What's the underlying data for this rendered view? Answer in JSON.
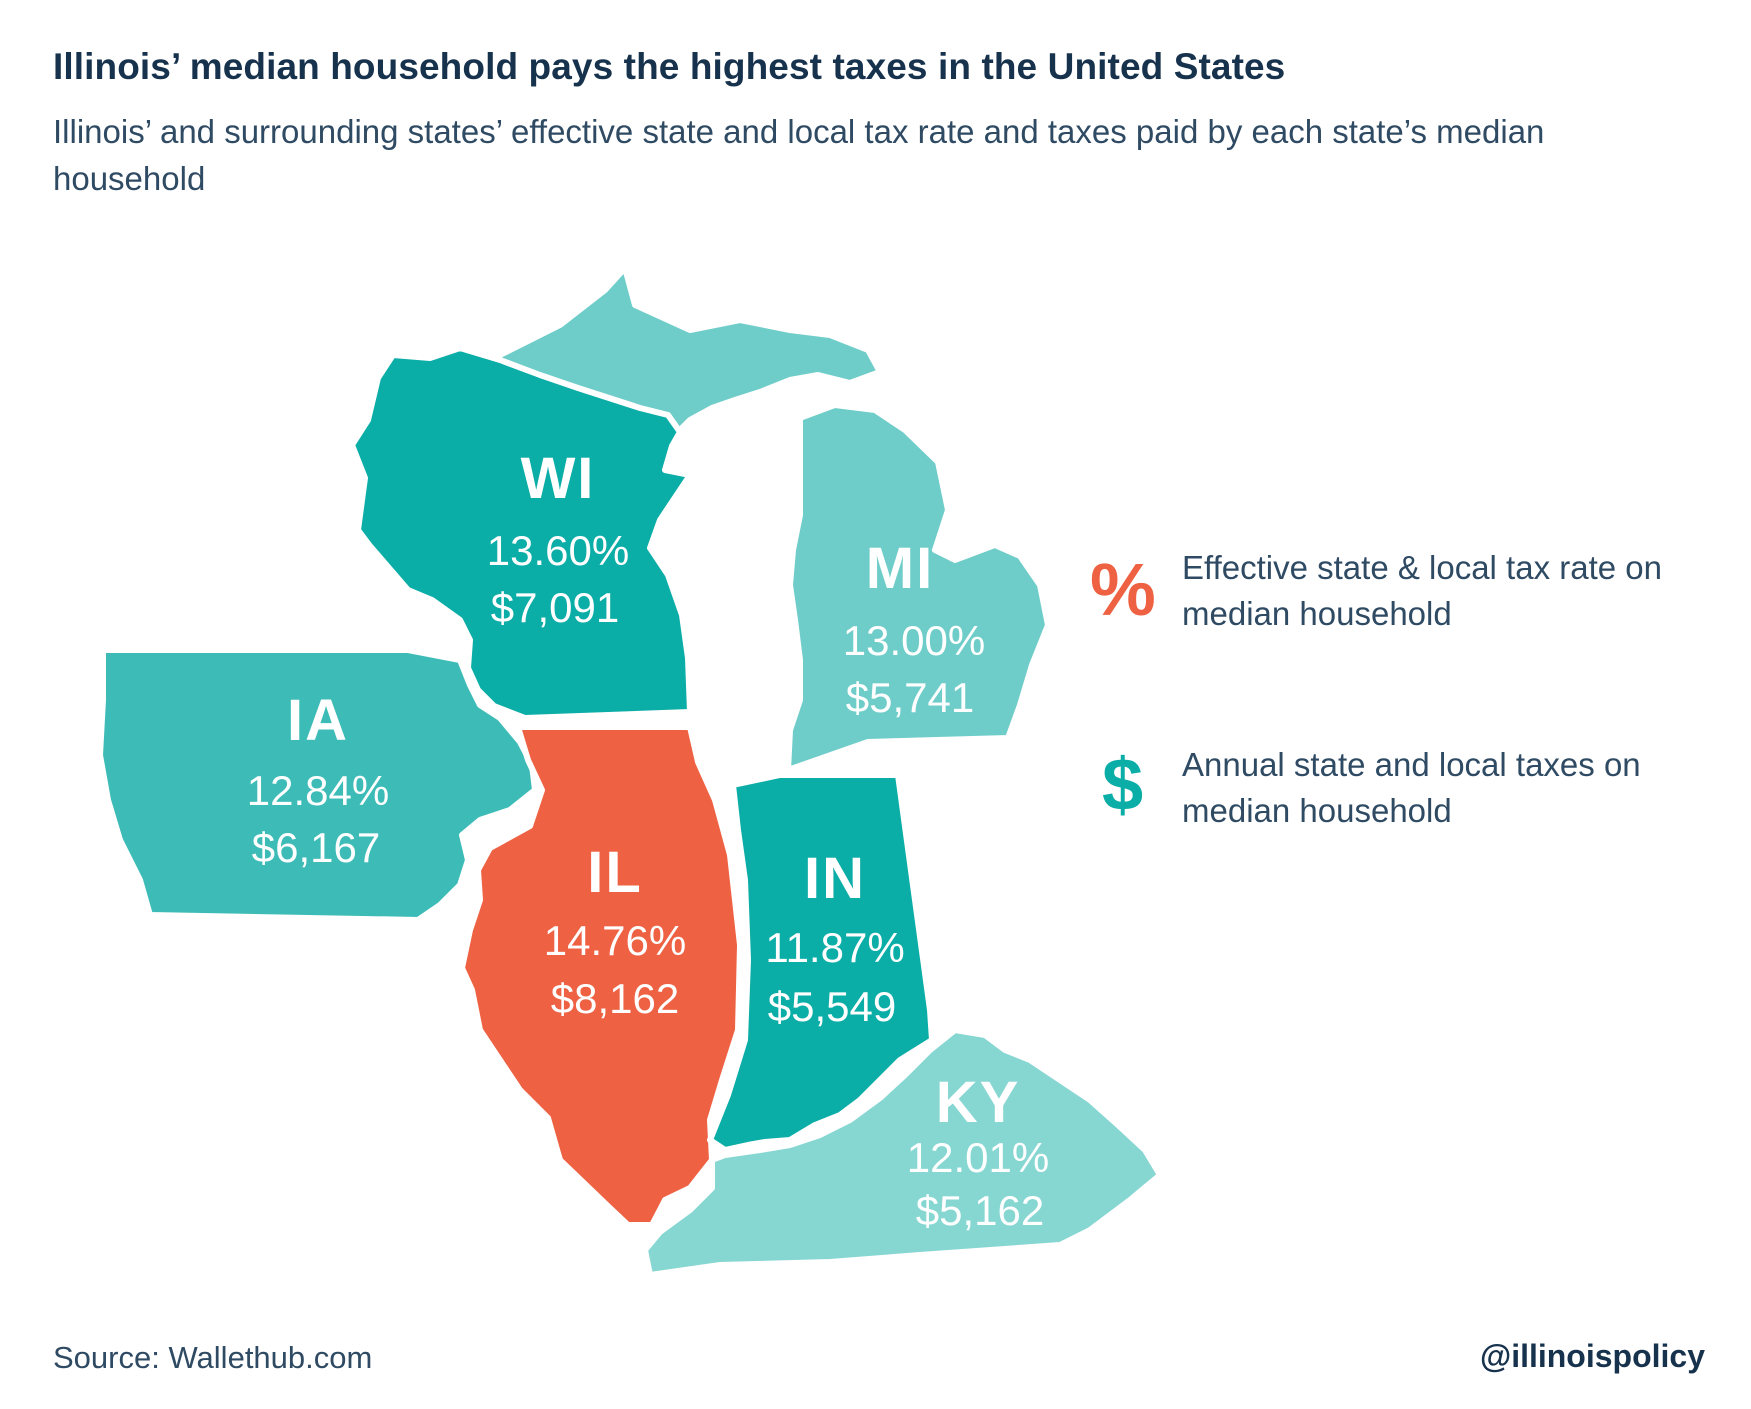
{
  "title": "Illinois’ median household pays the highest taxes in the United States",
  "subtitle": "Illinois’ and surrounding states’ effective state and local tax rate and taxes paid by each state’s median household",
  "colors": {
    "highlight": "#ee6142",
    "dark_teal": "#0bada7",
    "mid_teal": "#3dbcb7",
    "light_teal": "#6fcdc9",
    "pale_teal": "#86d6d2"
  },
  "states": [
    {
      "code": "WI",
      "rate": "13.60%",
      "taxes": "$7,091",
      "color": "#0bada7"
    },
    {
      "code": "MI",
      "rate": "13.00%",
      "taxes": "$5,741",
      "color": "#6fcdc9"
    },
    {
      "code": "IA",
      "rate": "12.84%",
      "taxes": "$6,167",
      "color": "#3dbcb7"
    },
    {
      "code": "IL",
      "rate": "14.76%",
      "taxes": "$8,162",
      "color": "#ee6142"
    },
    {
      "code": "IN",
      "rate": "11.87%",
      "taxes": "$5,549",
      "color": "#0bada7"
    },
    {
      "code": "KY",
      "rate": "12.01%",
      "taxes": "$5,162",
      "color": "#86d6d2"
    }
  ],
  "legend": [
    {
      "symbol": "%",
      "text": "Effective state & local tax rate on median household",
      "color": "#ee6142"
    },
    {
      "symbol": "$",
      "text": "Annual state and local taxes on median household",
      "color": "#0bada7"
    }
  ],
  "source": "Source: Wallethub.com",
  "handle": "@illinoispolicy"
}
